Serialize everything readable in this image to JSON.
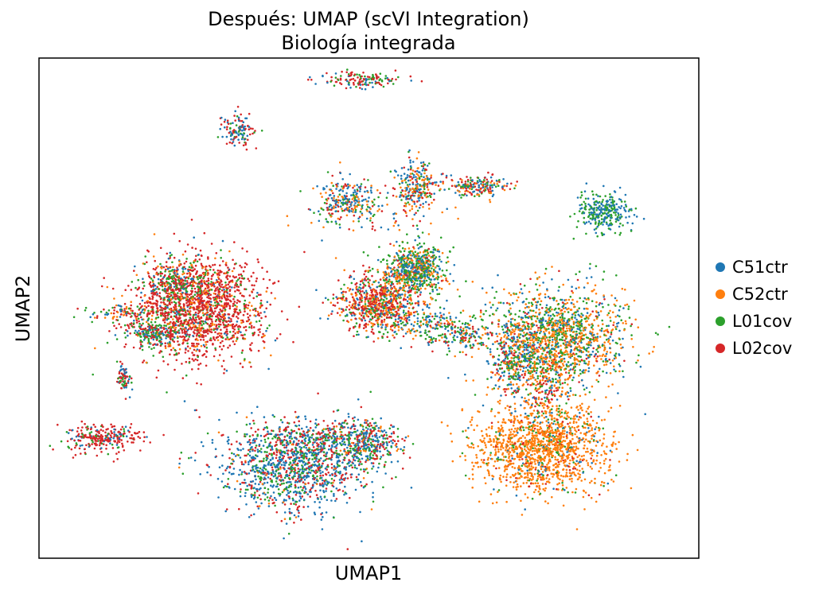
{
  "chart_data": {
    "type": "scatter",
    "title": "Después: UMAP (scVI Integration)",
    "subtitle": "Biología integrada",
    "xlabel": "UMAP1",
    "ylabel": "UMAP2",
    "xlim": [
      0,
      100
    ],
    "ylim": [
      0,
      100
    ],
    "ticks": "none",
    "grid": false,
    "legend_position": "right",
    "series": [
      {
        "name": "C51ctr",
        "color": "#1f77b4"
      },
      {
        "name": "C52ctr",
        "color": "#ff7f0e"
      },
      {
        "name": "L01cov",
        "color": "#2ca02c"
      },
      {
        "name": "L02cov",
        "color": "#d62728"
      }
    ],
    "clusters": [
      {
        "cx": 49.4,
        "cy": 95.6,
        "sx": 3.0,
        "sy": 0.8,
        "n": 140,
        "mix": [
          0.25,
          0.0,
          0.3,
          0.45
        ]
      },
      {
        "cx": 30.1,
        "cy": 85.6,
        "sx": 1.3,
        "sy": 1.6,
        "n": 120,
        "mix": [
          0.4,
          0.0,
          0.2,
          0.4
        ]
      },
      {
        "cx": 46.5,
        "cy": 71.5,
        "sx": 2.3,
        "sy": 2.2,
        "n": 260,
        "mix": [
          0.4,
          0.2,
          0.2,
          0.2
        ]
      },
      {
        "cx": 57.1,
        "cy": 74.4,
        "sx": 1.5,
        "sy": 2.5,
        "n": 250,
        "mix": [
          0.4,
          0.2,
          0.2,
          0.2
        ]
      },
      {
        "cx": 66.3,
        "cy": 74.4,
        "sx": 2.3,
        "sy": 1.1,
        "n": 180,
        "mix": [
          0.3,
          0.2,
          0.2,
          0.3
        ]
      },
      {
        "cx": 53.0,
        "cy": 69.0,
        "sx": 7.0,
        "sy": 2.5,
        "n": 60,
        "mix": [
          0.2,
          0.4,
          0.2,
          0.2
        ]
      },
      {
        "cx": 85.5,
        "cy": 69.2,
        "sx": 2.1,
        "sy": 2.0,
        "n": 280,
        "mix": [
          0.5,
          0.0,
          0.5,
          0.0
        ]
      },
      {
        "cx": 24.1,
        "cy": 49.7,
        "sx": 5.0,
        "sy": 5.0,
        "n": 1700,
        "mix": [
          0.04,
          0.15,
          0.13,
          0.68
        ]
      },
      {
        "cx": 21.0,
        "cy": 55.0,
        "sx": 2.5,
        "sy": 2.5,
        "n": 260,
        "mix": [
          0.2,
          0.1,
          0.35,
          0.35
        ]
      },
      {
        "cx": 17.5,
        "cy": 45.0,
        "sx": 2.5,
        "sy": 1.2,
        "n": 160,
        "mix": [
          0.3,
          0.0,
          0.5,
          0.2
        ]
      },
      {
        "cx": 13.0,
        "cy": 49.0,
        "sx": 3.0,
        "sy": 0.8,
        "n": 80,
        "mix": [
          0.3,
          0.2,
          0.3,
          0.2
        ]
      },
      {
        "cx": 12.9,
        "cy": 35.8,
        "sx": 0.6,
        "sy": 1.4,
        "n": 70,
        "mix": [
          0.35,
          0.0,
          0.25,
          0.4
        ]
      },
      {
        "cx": 56.9,
        "cy": 57.4,
        "sx": 2.3,
        "sy": 2.5,
        "n": 650,
        "mix": [
          0.3,
          0.25,
          0.4,
          0.05
        ]
      },
      {
        "cx": 51.3,
        "cy": 51.0,
        "sx": 3.0,
        "sy": 3.0,
        "n": 750,
        "mix": [
          0.15,
          0.25,
          0.15,
          0.45
        ]
      },
      {
        "cx": 58.5,
        "cy": 47.0,
        "sx": 3.5,
        "sy": 2.0,
        "n": 180,
        "mix": [
          0.4,
          0.2,
          0.3,
          0.1
        ]
      },
      {
        "cx": 64.5,
        "cy": 44.5,
        "sx": 2.5,
        "sy": 1.6,
        "n": 140,
        "mix": [
          0.35,
          0.1,
          0.35,
          0.2
        ]
      },
      {
        "cx": 78.5,
        "cy": 44.0,
        "sx": 5.0,
        "sy": 5.0,
        "n": 1500,
        "mix": [
          0.2,
          0.45,
          0.3,
          0.05
        ]
      },
      {
        "cx": 76.6,
        "cy": 34.0,
        "sx": 2.0,
        "sy": 3.5,
        "n": 200,
        "mix": [
          0.15,
          0.4,
          0.2,
          0.25
        ]
      },
      {
        "cx": 76.3,
        "cy": 22.5,
        "sx": 5.0,
        "sy": 4.5,
        "n": 1450,
        "mix": [
          0.06,
          0.8,
          0.08,
          0.06
        ]
      },
      {
        "cx": 71.3,
        "cy": 39.5,
        "sx": 1.5,
        "sy": 3.5,
        "n": 220,
        "mix": [
          0.4,
          0.1,
          0.25,
          0.25
        ]
      },
      {
        "cx": 9.7,
        "cy": 24.0,
        "sx": 2.8,
        "sy": 1.4,
        "n": 260,
        "mix": [
          0.15,
          0.0,
          0.15,
          0.7
        ]
      },
      {
        "cx": 38.5,
        "cy": 18.2,
        "sx": 5.5,
        "sy": 4.5,
        "n": 1200,
        "mix": [
          0.5,
          0.05,
          0.2,
          0.25
        ]
      },
      {
        "cx": 49.8,
        "cy": 23.0,
        "sx": 2.5,
        "sy": 2.5,
        "n": 350,
        "mix": [
          0.4,
          0.05,
          0.25,
          0.3
        ]
      },
      {
        "cx": 42.5,
        "cy": 23.5,
        "sx": 5.0,
        "sy": 2.0,
        "n": 250,
        "mix": [
          0.3,
          0.05,
          0.25,
          0.4
        ]
      }
    ]
  }
}
